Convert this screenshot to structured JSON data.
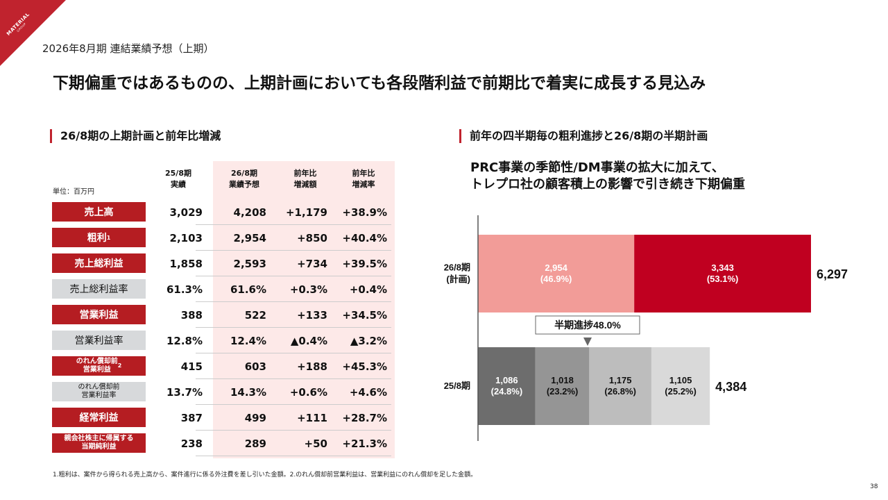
{
  "logo": {
    "name": "MATERIAL",
    "sub": "GROUP"
  },
  "subtitle": "2026年8月期 連結業績予想（上期）",
  "headline": "下期偏重ではあるものの、上期計画においても各段階利益で前期比で着実に成長する見込み",
  "left_section": {
    "title": "26/8期の上期計画と前年比増減",
    "unit": "単位：百万円",
    "columns": [
      "25/8期\n実績",
      "26/8期\n業績予想",
      "前年比\n増減額",
      "前年比\n増減率"
    ],
    "rows": [
      {
        "label": "売上高",
        "sup": "",
        "v1": "3,029",
        "v2": "4,208",
        "v3": "+1,179",
        "v4": "+38.9%"
      },
      {
        "label": "粗利",
        "sup": "1",
        "v1": "2,103",
        "v2": "2,954",
        "v3": "+850",
        "v4": "+40.4%"
      },
      {
        "label": "売上総利益",
        "sup": "",
        "v1": "1,858",
        "v2": "2,593",
        "v3": "+734",
        "v4": "+39.5%"
      },
      {
        "label": "売上総利益率",
        "sup": "",
        "v1": "61.3%",
        "v2": "61.6%",
        "v3": "+0.3%",
        "v4": "+0.4%"
      },
      {
        "label": "営業利益",
        "sup": "",
        "v1": "388",
        "v2": "522",
        "v3": "+133",
        "v4": "+34.5%"
      },
      {
        "label": "営業利益率",
        "sup": "",
        "v1": "12.8%",
        "v2": "12.4%",
        "v3": "▲0.4%",
        "v4": "▲3.2%"
      },
      {
        "label": "のれん償却前\n営業利益",
        "sup": "2",
        "v1": "415",
        "v2": "603",
        "v3": "+188",
        "v4": "+45.3%"
      },
      {
        "label": "のれん償却前\n営業利益率",
        "sup": "",
        "v1": "13.7%",
        "v2": "14.3%",
        "v3": "+0.6%",
        "v4": "+4.6%"
      },
      {
        "label": "経常利益",
        "sup": "",
        "v1": "387",
        "v2": "499",
        "v3": "+111",
        "v4": "+28.7%"
      },
      {
        "label": "親会社株主に帰属する\n当期純利益",
        "sup": "",
        "v1": "238",
        "v2": "289",
        "v3": "+50",
        "v4": "+21.3%"
      }
    ]
  },
  "right_section": {
    "title": "前年の四半期毎の粗利進捗と26/8期の半期計画",
    "note": "PRC事業の季節性/DM事業の拡大に加えて、\nトレプロ社の顧客積上の影響で引き続き下期偏重"
  },
  "chart_data": {
    "type": "bar",
    "orientation": "horizontal",
    "stacked": true,
    "title": "前年の四半期毎の粗利進捗と26/8期の半期計画",
    "categories": [
      "26/8期\n(計画)",
      "25/8期"
    ],
    "bars": [
      {
        "category": "26/8期\n(計画)",
        "total": 6297,
        "total_label": "6,297",
        "segments": [
          {
            "value": 2954,
            "label": "2,954",
            "pct": "(46.9%)",
            "color": "#f29c98",
            "text_color": "#ffffff"
          },
          {
            "value": 3343,
            "label": "3,343",
            "pct": "(53.1%)",
            "color": "#c00020",
            "text_color": "#ffffff"
          }
        ]
      },
      {
        "category": "25/8期",
        "total": 4384,
        "total_label": "4,384",
        "segments": [
          {
            "value": 1086,
            "label": "1,086",
            "pct": "(24.8%)",
            "color": "#6d6d6d",
            "text_color": "#ffffff"
          },
          {
            "value": 1018,
            "label": "1,018",
            "pct": "(23.2%)",
            "color": "#959595",
            "text_color": "#111111"
          },
          {
            "value": 1175,
            "label": "1,175",
            "pct": "(26.8%)",
            "color": "#bdbdbd",
            "text_color": "#111111"
          },
          {
            "value": 1105,
            "label": "1,105",
            "pct": "(25.2%)",
            "color": "#d9d9d9",
            "text_color": "#111111"
          }
        ]
      }
    ],
    "annotation": "半期進捗48.0%",
    "xlim": [
      0,
      7000
    ]
  },
  "footnote": "1.粗利は、案件から得られる売上高から、案件進行に係る外注費を差し引いた金額。2.のれん償却前営業利益は、営業利益にのれん償却を足した金額。",
  "page_number": "38"
}
